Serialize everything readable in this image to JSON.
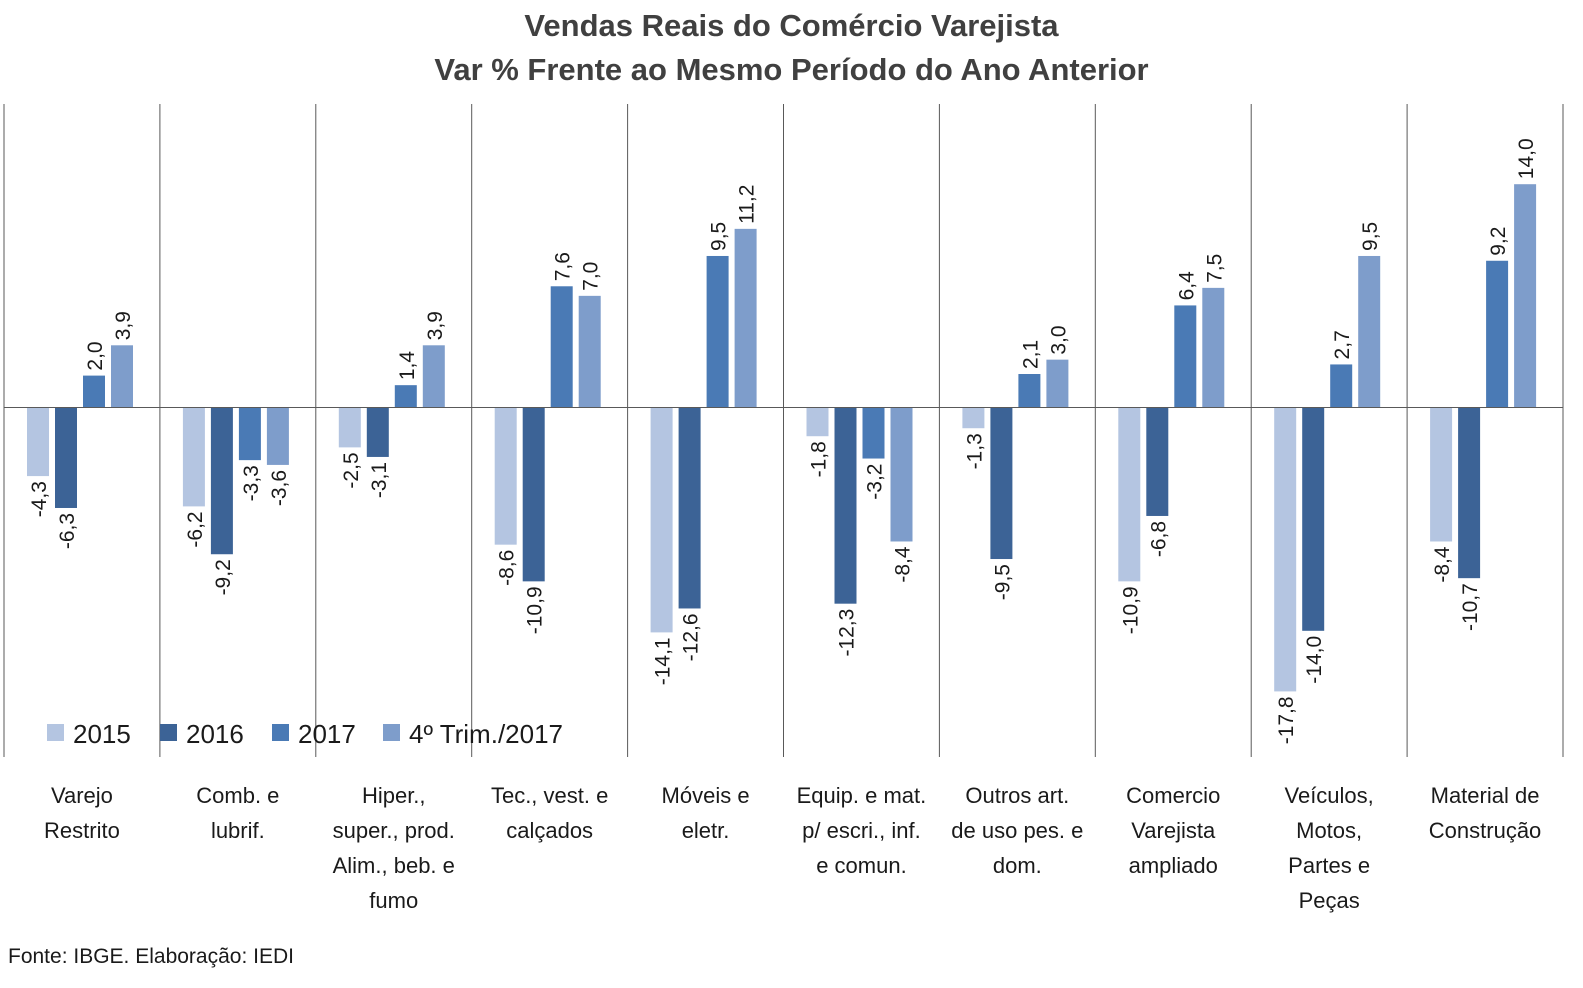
{
  "chart_data": {
    "type": "bar",
    "title": "Vendas Reais do Comércio Varejista",
    "subtitle": "Var % Frente ao Mesmo Período do Ano Anterior",
    "xlabel": "",
    "ylabel": "",
    "ylim": [
      -19.5,
      15.3
    ],
    "grid": false,
    "legend_position": "bottom-left",
    "categories": [
      [
        "Varejo",
        "Restrito"
      ],
      [
        "Comb. e",
        "lubrif."
      ],
      [
        "Hiper.,",
        "super., prod.",
        "Alim., beb. e",
        "fumo"
      ],
      [
        "Tec., vest. e",
        "calçados"
      ],
      [
        "Móveis e",
        "eletr."
      ],
      [
        "Equip. e mat.",
        "p/ escri., inf.",
        "e comun."
      ],
      [
        "Outros art.",
        "de uso pes. e",
        "dom."
      ],
      [
        "Comercio",
        "Varejista",
        "ampliado"
      ],
      [
        "Veículos,",
        "Motos,",
        "Partes e",
        "Peças"
      ],
      [
        "Material de",
        "Construção"
      ]
    ],
    "series": [
      {
        "name": "2015",
        "color": "#b4c5e1",
        "values": [
          -4.3,
          -6.2,
          -2.5,
          -8.6,
          -14.1,
          -1.8,
          -1.3,
          -10.9,
          -17.8,
          -8.4
        ]
      },
      {
        "name": "2016",
        "color": "#3c6396",
        "values": [
          -6.3,
          -9.2,
          -3.1,
          -10.9,
          -12.6,
          -12.3,
          -9.5,
          -6.8,
          -14.0,
          -10.7
        ]
      },
      {
        "name": "2017",
        "color": "#4a7ab5",
        "values": [
          2.0,
          -3.3,
          1.4,
          7.6,
          9.5,
          -3.2,
          2.1,
          6.4,
          2.7,
          9.2
        ]
      },
      {
        "name": "4º Trim./2017",
        "color": "#7e9dcb",
        "values": [
          3.9,
          -3.6,
          3.9,
          7.0,
          11.2,
          -8.4,
          3.0,
          7.5,
          9.5,
          14.0
        ]
      }
    ],
    "data_labels": [
      [
        "-4,3",
        "-6,2",
        "-2,5",
        "-8,6",
        "-14,1",
        "-1,8",
        "-1,3",
        "-10,9",
        "-17,8",
        "-8,4"
      ],
      [
        "-6,3",
        "-9,2",
        "-3,1",
        "-10,9",
        "-12,6",
        "-12,3",
        "-9,5",
        "-6,8",
        "-14,0",
        "-10,7"
      ],
      [
        "2,0",
        "-3,3",
        "1,4",
        "7,6",
        "9,5",
        "-3,2",
        "2,1",
        "6,4",
        "2,7",
        "9,2"
      ],
      [
        "3,9",
        "-3,6",
        "3,9",
        "7,0",
        "11,2",
        "-8,4",
        "3,0",
        "7,5",
        "9,5",
        "14,0"
      ]
    ]
  },
  "source": "Fonte: IBGE. Elaboração: IEDI"
}
